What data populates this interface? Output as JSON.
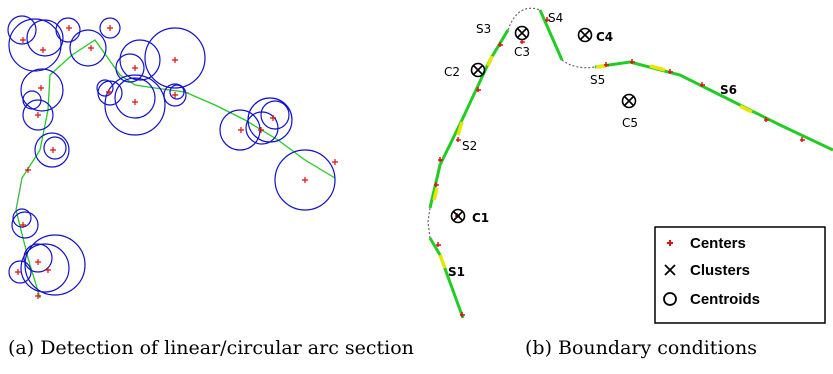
{
  "panel_a": {
    "caption": "(a) Detection of linear/circular arc section"
  },
  "panel_b": {
    "caption": "(b) Boundary conditions",
    "segment_labels": [
      "S1",
      "S2",
      "S3",
      "S4",
      "S5",
      "S6"
    ],
    "centroid_labels": [
      "C1",
      "C2",
      "C3",
      "C4",
      "C5"
    ],
    "legend": {
      "centers": "Centers",
      "clusters": "Clusters",
      "centroids": "Centroids"
    }
  },
  "colors": {
    "circle": "#1010cc",
    "path_line": "#22cc22",
    "path_highlight": "#e6e600",
    "center_marker": "#dd1111",
    "gap_line": "#888888"
  }
}
